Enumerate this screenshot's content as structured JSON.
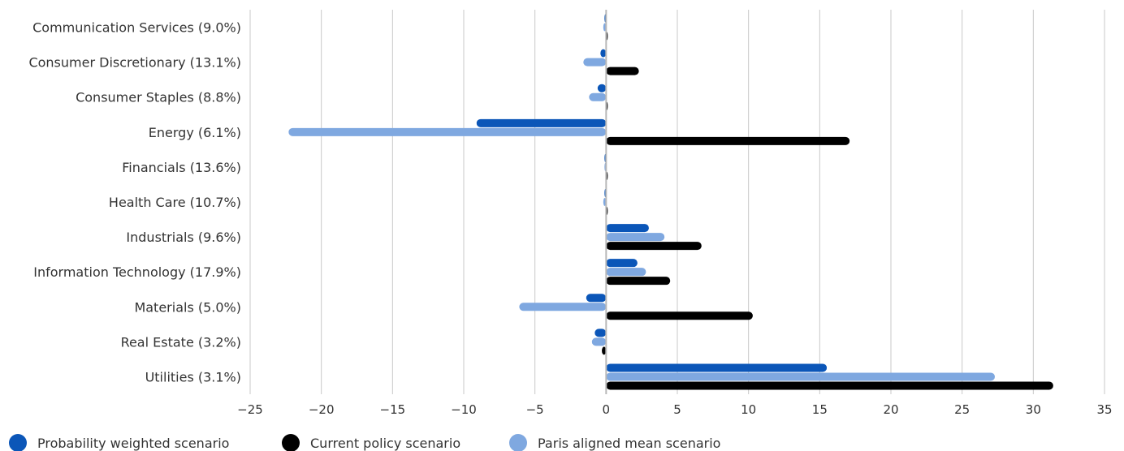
{
  "chart_data": {
    "type": "bar",
    "orientation": "horizontal",
    "categories": [
      "Communication Services (9.0%)",
      "Consumer Discretionary (13.1%)",
      "Consumer Staples (8.8%)",
      "Energy (6.1%)",
      "Financials (13.6%)",
      "Health Care (10.7%)",
      "Industrials (9.6%)",
      "Information Technology (17.9%)",
      "Materials (5.0%)",
      "Real Estate (3.2%)",
      "Utilities (3.1%)"
    ],
    "series": [
      {
        "name": "Probability weighted scenario",
        "color": "#0b56b8",
        "values": [
          -0.1,
          -0.4,
          -0.6,
          -9.1,
          -0.05,
          -0.1,
          3.0,
          2.2,
          -1.4,
          -0.8,
          15.5
        ]
      },
      {
        "name": "Paris aligned mean scenario",
        "color": "#7fa8e0",
        "values": [
          -0.2,
          -1.6,
          -1.2,
          -22.3,
          -0.1,
          -0.2,
          4.1,
          2.8,
          -6.1,
          -1.0,
          27.3
        ]
      },
      {
        "name": "Current policy scenario",
        "color": "#000000",
        "values": [
          0.0,
          2.3,
          0.05,
          17.1,
          0.0,
          0.0,
          6.7,
          4.5,
          10.3,
          -0.3,
          31.4
        ]
      }
    ],
    "xlim": [
      -25,
      35
    ],
    "xticks": [
      "−25",
      "−20",
      "−15",
      "−10",
      "−5",
      "0",
      "5",
      "10",
      "15",
      "20",
      "25",
      "30",
      "35"
    ],
    "xtick_values": [
      -25,
      -20,
      -15,
      -10,
      -5,
      0,
      5,
      10,
      15,
      20,
      25,
      30,
      35
    ],
    "grid": "vertical",
    "legend": [
      {
        "name": "Probability weighted scenario",
        "color": "#0b56b8"
      },
      {
        "name": "Current policy scenario",
        "color": "#000000"
      },
      {
        "name": "Paris aligned mean scenario",
        "color": "#7fa8e0"
      }
    ],
    "legend_position": "bottom-left"
  }
}
